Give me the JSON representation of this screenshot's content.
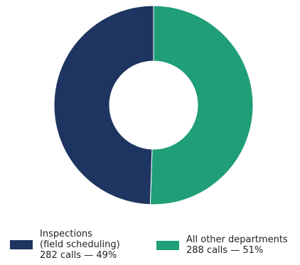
{
  "chart_data": {
    "type": "pie",
    "style": "donut",
    "start_angle_deg": 90,
    "direction": "clockwise",
    "slices": [
      {
        "label_lines": [
          "Inspections",
          "(field scheduling)"
        ],
        "value": 282,
        "percent": 49,
        "value_text": "282 calls — 49%",
        "color": "#1e3461"
      },
      {
        "label_lines": [
          "All other departments"
        ],
        "value": 288,
        "percent": 51,
        "value_text": "288 calls — 51%",
        "color": "#1f9e78"
      }
    ],
    "legend_position": "bottom"
  }
}
